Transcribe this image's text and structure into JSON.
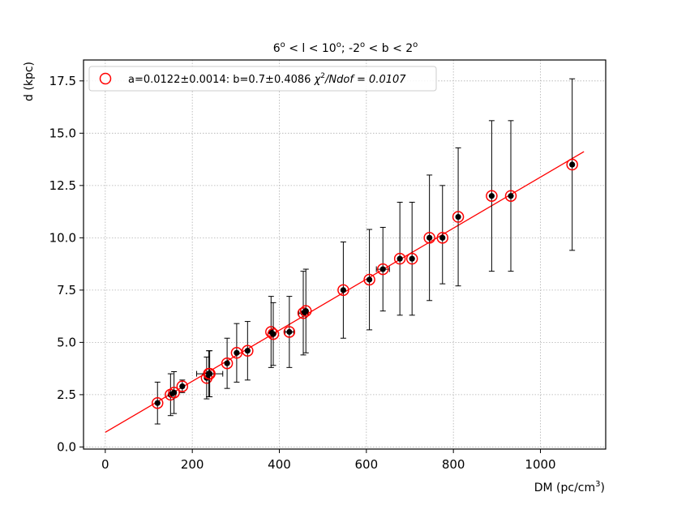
{
  "chart_data": {
    "type": "scatter",
    "title_parts": {
      "a": "6",
      "a_sup": "o",
      "b": " < l < 10",
      "b_sup": "o",
      "c": "; -2",
      "c_sup": "o",
      "d": " < b < 2",
      "d_sup": "o"
    },
    "xlabel": "DM (pc/cm",
    "xlabel_sup": "3",
    "xlabel_end": ")",
    "ylabel": "d (kpc)",
    "xlim": [
      -50,
      1150
    ],
    "ylim": [
      -0.1,
      18.5
    ],
    "xticks": [
      0,
      200,
      400,
      600,
      800,
      1000
    ],
    "yticks": [
      0.0,
      2.5,
      5.0,
      7.5,
      10.0,
      12.5,
      15.0,
      17.5
    ],
    "xtick_labels": [
      "0",
      "200",
      "400",
      "600",
      "800",
      "1000"
    ],
    "ytick_labels": [
      "0.0",
      "2.5",
      "5.0",
      "7.5",
      "10.0",
      "12.5",
      "15.0",
      "17.5"
    ],
    "grid": true,
    "legend_position": "top-left",
    "legend": {
      "label_main": "a=0.0122±0.0014: b=0.7±0.4086 ",
      "chi": "χ",
      "chi_sup": "2",
      "label_end": "/Ndof = 0.0107"
    },
    "fit_line": {
      "slope": 0.0122,
      "intercept": 0.7,
      "x_start": 0,
      "x_end": 1100,
      "color": "#ff0000"
    },
    "colors": {
      "marker_edge": "#ff0000",
      "point": "#000000",
      "errorbar": "#000000",
      "fit": "#ff0000"
    },
    "points": [
      {
        "x": 120,
        "y": 2.1,
        "yerr_low": 1.0,
        "yerr_high": 1.0,
        "xerr": 0
      },
      {
        "x": 150,
        "y": 2.5,
        "yerr_low": 1.0,
        "yerr_high": 1.0,
        "xerr": 0
      },
      {
        "x": 158,
        "y": 2.6,
        "yerr_low": 1.0,
        "yerr_high": 1.0,
        "xerr": 0
      },
      {
        "x": 177,
        "y": 2.9,
        "yerr_low": 0.3,
        "yerr_high": 0.3,
        "xerr": 0
      },
      {
        "x": 233,
        "y": 3.3,
        "yerr_low": 1.0,
        "yerr_high": 1.0,
        "xerr": 0
      },
      {
        "x": 238,
        "y": 3.5,
        "yerr_low": 1.1,
        "yerr_high": 1.1,
        "xerr": 0
      },
      {
        "x": 240,
        "y": 3.5,
        "yerr_low": 1.1,
        "yerr_high": 1.1,
        "xerr": 30
      },
      {
        "x": 280,
        "y": 4.0,
        "yerr_low": 1.2,
        "yerr_high": 1.2,
        "xerr": 0
      },
      {
        "x": 302,
        "y": 4.5,
        "yerr_low": 1.4,
        "yerr_high": 1.4,
        "xerr": 0
      },
      {
        "x": 327,
        "y": 4.6,
        "yerr_low": 1.4,
        "yerr_high": 1.4,
        "xerr": 0
      },
      {
        "x": 381,
        "y": 5.5,
        "yerr_low": 1.7,
        "yerr_high": 1.7,
        "xerr": 0
      },
      {
        "x": 386,
        "y": 5.4,
        "yerr_low": 1.5,
        "yerr_high": 1.5,
        "xerr": 0
      },
      {
        "x": 423,
        "y": 5.5,
        "yerr_low": 1.7,
        "yerr_high": 1.7,
        "xerr": 10
      },
      {
        "x": 455,
        "y": 6.4,
        "yerr_low": 2.0,
        "yerr_high": 2.0,
        "xerr": 10
      },
      {
        "x": 461,
        "y": 6.5,
        "yerr_low": 2.0,
        "yerr_high": 2.0,
        "xerr": 0
      },
      {
        "x": 547,
        "y": 7.5,
        "yerr_low": 2.3,
        "yerr_high": 2.3,
        "xerr": 0
      },
      {
        "x": 607,
        "y": 8.0,
        "yerr_low": 2.4,
        "yerr_high": 2.4,
        "xerr": 0
      },
      {
        "x": 638,
        "y": 8.5,
        "yerr_low": 2.0,
        "yerr_high": 2.0,
        "xerr": 15
      },
      {
        "x": 677,
        "y": 9.0,
        "yerr_low": 2.7,
        "yerr_high": 2.7,
        "xerr": 0
      },
      {
        "x": 705,
        "y": 9.0,
        "yerr_low": 2.7,
        "yerr_high": 2.7,
        "xerr": 0
      },
      {
        "x": 745,
        "y": 10.0,
        "yerr_low": 3.0,
        "yerr_high": 3.0,
        "xerr": 0
      },
      {
        "x": 775,
        "y": 10.0,
        "yerr_low": 2.2,
        "yerr_high": 2.5,
        "xerr": 0
      },
      {
        "x": 811,
        "y": 11.0,
        "yerr_low": 3.3,
        "yerr_high": 3.3,
        "xerr": 0
      },
      {
        "x": 888,
        "y": 12.0,
        "yerr_low": 3.6,
        "yerr_high": 3.6,
        "xerr": 0
      },
      {
        "x": 932,
        "y": 12.0,
        "yerr_low": 3.6,
        "yerr_high": 3.6,
        "xerr": 0
      },
      {
        "x": 1073,
        "y": 13.5,
        "yerr_low": 4.1,
        "yerr_high": 4.1,
        "xerr": 0
      }
    ]
  }
}
